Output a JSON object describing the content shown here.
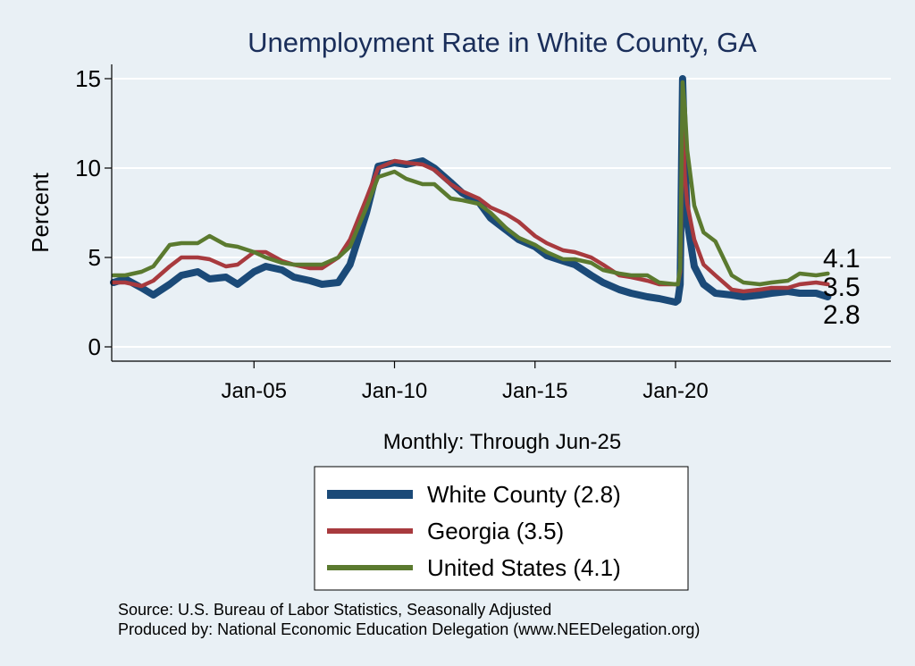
{
  "chart_data": {
    "type": "line",
    "title": "Unemployment Rate in White  County, GA",
    "xlabel": "Monthly: Through Jun-25",
    "ylabel": "Percent",
    "ylim": [
      0,
      16
    ],
    "xlim": [
      "2000-01",
      "2028-06"
    ],
    "yticks": [
      0,
      5,
      10,
      15
    ],
    "yticklabels": [
      "0",
      "5",
      "10",
      "15"
    ],
    "xticks": [
      "2005-01",
      "2010-01",
      "2015-01",
      "2020-01"
    ],
    "xticklabels": [
      "Jan-05",
      "Jan-10",
      "Jan-15",
      "Jan-20"
    ],
    "grid": true,
    "legend_position": "bottom",
    "series": [
      {
        "name": "White  County (2.8)",
        "end_label": "2.8",
        "color": "#1b4a78",
        "points": [
          [
            "2000-01",
            3.6
          ],
          [
            "2000-06",
            3.8
          ],
          [
            "2001-01",
            3.3
          ],
          [
            "2001-06",
            2.9
          ],
          [
            "2002-01",
            3.5
          ],
          [
            "2002-06",
            4.0
          ],
          [
            "2003-01",
            4.2
          ],
          [
            "2003-06",
            3.8
          ],
          [
            "2004-01",
            3.9
          ],
          [
            "2004-06",
            3.5
          ],
          [
            "2005-01",
            4.2
          ],
          [
            "2005-06",
            4.5
          ],
          [
            "2006-01",
            4.3
          ],
          [
            "2006-06",
            3.9
          ],
          [
            "2007-01",
            3.7
          ],
          [
            "2007-06",
            3.5
          ],
          [
            "2008-01",
            3.6
          ],
          [
            "2008-06",
            4.6
          ],
          [
            "2009-01",
            7.5
          ],
          [
            "2009-06",
            10.1
          ],
          [
            "2010-01",
            10.3
          ],
          [
            "2010-06",
            10.2
          ],
          [
            "2011-01",
            10.4
          ],
          [
            "2011-06",
            10.0
          ],
          [
            "2012-01",
            9.2
          ],
          [
            "2012-06",
            8.6
          ],
          [
            "2013-01",
            8.1
          ],
          [
            "2013-06",
            7.2
          ],
          [
            "2014-01",
            6.5
          ],
          [
            "2014-06",
            6.0
          ],
          [
            "2015-01",
            5.6
          ],
          [
            "2015-06",
            5.1
          ],
          [
            "2016-01",
            4.8
          ],
          [
            "2016-06",
            4.6
          ],
          [
            "2017-01",
            4.0
          ],
          [
            "2017-06",
            3.6
          ],
          [
            "2018-01",
            3.2
          ],
          [
            "2018-06",
            3.0
          ],
          [
            "2019-01",
            2.8
          ],
          [
            "2019-06",
            2.7
          ],
          [
            "2020-01",
            2.5
          ],
          [
            "2020-02",
            2.6
          ],
          [
            "2020-03",
            3.5
          ],
          [
            "2020-04",
            15.0
          ],
          [
            "2020-05",
            10.5
          ],
          [
            "2020-06",
            7.0
          ],
          [
            "2020-09",
            4.5
          ],
          [
            "2021-01",
            3.5
          ],
          [
            "2021-06",
            3.0
          ],
          [
            "2022-01",
            2.9
          ],
          [
            "2022-06",
            2.8
          ],
          [
            "2023-01",
            2.9
          ],
          [
            "2023-06",
            3.0
          ],
          [
            "2024-01",
            3.1
          ],
          [
            "2024-06",
            3.0
          ],
          [
            "2025-01",
            3.0
          ],
          [
            "2025-06",
            2.8
          ]
        ]
      },
      {
        "name": "Georgia (3.5)",
        "end_label": "3.5",
        "color": "#a83a3e",
        "points": [
          [
            "2000-01",
            3.6
          ],
          [
            "2000-06",
            3.6
          ],
          [
            "2001-01",
            3.4
          ],
          [
            "2001-06",
            3.7
          ],
          [
            "2002-01",
            4.5
          ],
          [
            "2002-06",
            5.0
          ],
          [
            "2003-01",
            5.0
          ],
          [
            "2003-06",
            4.9
          ],
          [
            "2004-01",
            4.5
          ],
          [
            "2004-06",
            4.6
          ],
          [
            "2005-01",
            5.3
          ],
          [
            "2005-06",
            5.3
          ],
          [
            "2006-01",
            4.8
          ],
          [
            "2006-06",
            4.6
          ],
          [
            "2007-01",
            4.4
          ],
          [
            "2007-06",
            4.4
          ],
          [
            "2008-01",
            5.0
          ],
          [
            "2008-06",
            6.0
          ],
          [
            "2009-01",
            8.3
          ],
          [
            "2009-06",
            10.0
          ],
          [
            "2010-01",
            10.4
          ],
          [
            "2010-06",
            10.3
          ],
          [
            "2011-01",
            10.2
          ],
          [
            "2011-06",
            9.9
          ],
          [
            "2012-01",
            9.1
          ],
          [
            "2012-06",
            8.7
          ],
          [
            "2013-01",
            8.3
          ],
          [
            "2013-06",
            7.8
          ],
          [
            "2014-01",
            7.4
          ],
          [
            "2014-06",
            7.0
          ],
          [
            "2015-01",
            6.2
          ],
          [
            "2015-06",
            5.8
          ],
          [
            "2016-01",
            5.4
          ],
          [
            "2016-06",
            5.3
          ],
          [
            "2017-01",
            5.0
          ],
          [
            "2017-06",
            4.6
          ],
          [
            "2018-01",
            4.0
          ],
          [
            "2018-06",
            3.9
          ],
          [
            "2019-01",
            3.7
          ],
          [
            "2019-06",
            3.5
          ],
          [
            "2020-01",
            3.5
          ],
          [
            "2020-02",
            3.5
          ],
          [
            "2020-03",
            4.2
          ],
          [
            "2020-04",
            12.5
          ],
          [
            "2020-05",
            9.5
          ],
          [
            "2020-06",
            8.0
          ],
          [
            "2020-09",
            6.0
          ],
          [
            "2021-01",
            4.6
          ],
          [
            "2021-06",
            4.0
          ],
          [
            "2022-01",
            3.2
          ],
          [
            "2022-06",
            3.1
          ],
          [
            "2023-01",
            3.2
          ],
          [
            "2023-06",
            3.3
          ],
          [
            "2024-01",
            3.3
          ],
          [
            "2024-06",
            3.5
          ],
          [
            "2025-01",
            3.6
          ],
          [
            "2025-06",
            3.5
          ]
        ]
      },
      {
        "name": "United States (4.1)",
        "end_label": "4.1",
        "color": "#5b7a2f",
        "points": [
          [
            "2000-01",
            4.0
          ],
          [
            "2000-06",
            4.0
          ],
          [
            "2001-01",
            4.2
          ],
          [
            "2001-06",
            4.5
          ],
          [
            "2002-01",
            5.7
          ],
          [
            "2002-06",
            5.8
          ],
          [
            "2003-01",
            5.8
          ],
          [
            "2003-06",
            6.2
          ],
          [
            "2004-01",
            5.7
          ],
          [
            "2004-06",
            5.6
          ],
          [
            "2005-01",
            5.3
          ],
          [
            "2005-06",
            5.0
          ],
          [
            "2006-01",
            4.7
          ],
          [
            "2006-06",
            4.6
          ],
          [
            "2007-01",
            4.6
          ],
          [
            "2007-06",
            4.6
          ],
          [
            "2008-01",
            5.0
          ],
          [
            "2008-06",
            5.6
          ],
          [
            "2009-01",
            7.8
          ],
          [
            "2009-06",
            9.5
          ],
          [
            "2010-01",
            9.8
          ],
          [
            "2010-06",
            9.4
          ],
          [
            "2011-01",
            9.1
          ],
          [
            "2011-06",
            9.1
          ],
          [
            "2012-01",
            8.3
          ],
          [
            "2012-06",
            8.2
          ],
          [
            "2013-01",
            8.0
          ],
          [
            "2013-06",
            7.5
          ],
          [
            "2014-01",
            6.6
          ],
          [
            "2014-06",
            6.1
          ],
          [
            "2015-01",
            5.7
          ],
          [
            "2015-06",
            5.3
          ],
          [
            "2016-01",
            4.9
          ],
          [
            "2016-06",
            4.9
          ],
          [
            "2017-01",
            4.7
          ],
          [
            "2017-06",
            4.3
          ],
          [
            "2018-01",
            4.1
          ],
          [
            "2018-06",
            4.0
          ],
          [
            "2019-01",
            4.0
          ],
          [
            "2019-06",
            3.6
          ],
          [
            "2020-01",
            3.5
          ],
          [
            "2020-02",
            3.5
          ],
          [
            "2020-03",
            4.4
          ],
          [
            "2020-04",
            14.8
          ],
          [
            "2020-05",
            13.3
          ],
          [
            "2020-06",
            11.0
          ],
          [
            "2020-09",
            7.9
          ],
          [
            "2021-01",
            6.4
          ],
          [
            "2021-06",
            5.9
          ],
          [
            "2022-01",
            4.0
          ],
          [
            "2022-06",
            3.6
          ],
          [
            "2023-01",
            3.5
          ],
          [
            "2023-06",
            3.6
          ],
          [
            "2024-01",
            3.7
          ],
          [
            "2024-06",
            4.1
          ],
          [
            "2025-01",
            4.0
          ],
          [
            "2025-06",
            4.1
          ]
        ]
      }
    ]
  },
  "source_line": "Source: U.S. Bureau of Labor Statistics, Seasonally Adjusted",
  "produced_line": "Produced by: National Economic Education Delegation (www.NEEDelegation.org)"
}
